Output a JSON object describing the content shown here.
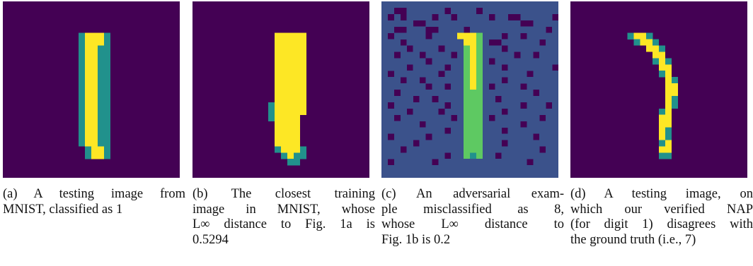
{
  "colors": {
    "background": "#440154",
    "mid": "#3b528b",
    "teal": "#21918c",
    "green": "#5ec962",
    "yellow": "#fde725"
  },
  "figures": [
    {
      "id": "a",
      "caption_lines": [
        "(a) A testing image from",
        "MNIST, classified as 1"
      ],
      "grid": [
        "0000000000000000000000000000",
        "0000000000000000000000000000",
        "0000000000000000000000000000",
        "0000000000000000000000000000",
        "0000000000000000000000000000",
        "0000000000002444200000000000",
        "0000000000002444200000000000",
        "0000000000002442200000000000",
        "0000000000002442200000000000",
        "0000000000002442200000000000",
        "0000000000002442200000000000",
        "0000000000002442200000000000",
        "0000000000002442200000000000",
        "0000000000002442200000000000",
        "0000000000002442200000000000",
        "0000000000002442200000000000",
        "0000000000002442200000000000",
        "0000000000002442200000000000",
        "0000000000002442200000000000",
        "0000000000002442200000000000",
        "0000000000002442200000000000",
        "0000000000002442200000000000",
        "0000000000002442200000000000",
        "0000000000000244200000000000",
        "0000000000000244200000000000",
        "0000000000000000000000000000",
        "0000000000000000000000000000",
        "0000000000000000000000000000"
      ]
    },
    {
      "id": "b",
      "caption_lines": [
        "(b) The closest training",
        "image in MNIST, whose",
        "L∞ distance to Fig. 1a is",
        "0.5294"
      ],
      "grid": [
        "0000000000000000000000000000",
        "0000000000000000000000000000",
        "0000000000000000000000000000",
        "0000000000000000000000000000",
        "0000000000000000000000000000",
        "0000000000000444440000000000",
        "0000000000000444440000000000",
        "0000000000000444440000000000",
        "0000000000000444440000000000",
        "0000000000000444440000000000",
        "0000000000000444440000000000",
        "0000000000000444440000000000",
        "0000000000000444440000000000",
        "0000000000000444440000000000",
        "0000000000000444440000000000",
        "0000000000000444440000000000",
        "0000000000002444440000000000",
        "0000000000002444440000000000",
        "0000000000002444400000000000",
        "0000000000000444400000000000",
        "0000000000000444400000000000",
        "0000000000000444400000000000",
        "0000000000000444400000000000",
        "0000000000000244420000000000",
        "0000000000000024220000000000",
        "0000000000000002200000000000",
        "0000000000000000000000000000",
        "0000000000000000000000000000"
      ]
    },
    {
      "id": "c",
      "caption_lines": [
        "(c) An adversarial exam-",
        "ple misclassified as 8,",
        "whose L∞ distance to",
        "Fig. 1b is 0.2"
      ],
      "grid": [
        "1111111111111111111111111111",
        "1100111111011110111111111111",
        "1010111101101111101100111110",
        "1111100111111111111111001111",
        "1100111001111011111111111101",
        "1011111011114443111011011111",
        "1110111111111443100111111011",
        "1111011110111343111011111111",
        "1101110111101343111110110111",
        "1111111011111343101111111111",
        "1111011111011343111011111110",
        "1011111110111343111111101111",
        "1110110111111343111011111111",
        "1111111011011343101111011111",
        "1101111111111333111111110111",
        "1111101101111333110111111111",
        "1011111111011333111111011101",
        "1111011110111333111011111111",
        "1101111111101333101111111011",
        "1111110111111333111111011111",
        "1111111111011333111011111111",
        "1011111011111333111111110111",
        "1111101111111333111011111111",
        "1110111111111333111111111011",
        "1111111111011323110111111111",
        "1011111101111111111111101111",
        "1111111111111111111111111111",
        "1111111111111111111111111111"
      ]
    },
    {
      "id": "d",
      "caption_lines": [
        "(d) A testing image, on",
        "which our verified NAP",
        "(for digit 1) disagrees with",
        "the ground truth (i.e., 7)"
      ],
      "grid": [
        "0000000000000000000000000000",
        "0000000000000000000000000000",
        "0000000000000000000000000000",
        "0000000000000000000000000000",
        "0000000000000000000000000000",
        "0000000000000000000000000000",
        "0000000000000000000000000000",
        "0000000000000000000000000000",
        "0000000000000000000000000000",
        "0000000000000000000000000000",
        "0000000000000000000000000000",
        "0000000000000000000000000000",
        "0000000000000000000000000000",
        "0000000000000000000000000000",
        "0000000000000000000000000000",
        "0000000000000000000000000000",
        "0000000000000000000000000000",
        "0000000000000000000000000000",
        "0000000000000000000000000000",
        "0000000000000000000000000000",
        "0000000000000000000000000000",
        "0000000000000000000000000000",
        "0000000000000000000000000000",
        "0000000000000000000000000000",
        "0000000000000000000000000000",
        "0000000000000000000000000000",
        "0000000000000000000000000000",
        "0000000000000000000000000000"
      ],
      "stroke": [
        [
          10,
          5,
          4
        ],
        [
          11,
          5,
          4
        ],
        [
          12,
          5,
          2
        ],
        [
          11,
          6,
          4
        ],
        [
          12,
          6,
          4
        ],
        [
          13,
          6,
          2
        ],
        [
          12,
          7,
          4
        ],
        [
          13,
          7,
          4
        ],
        [
          14,
          7,
          2
        ],
        [
          13,
          8,
          4
        ],
        [
          14,
          8,
          4
        ],
        [
          13,
          9,
          2
        ],
        [
          14,
          9,
          4
        ],
        [
          15,
          9,
          2
        ],
        [
          14,
          10,
          4
        ],
        [
          15,
          10,
          4
        ],
        [
          14,
          11,
          2
        ],
        [
          15,
          11,
          4
        ],
        [
          15,
          12,
          4
        ],
        [
          16,
          12,
          2
        ],
        [
          15,
          13,
          4
        ],
        [
          16,
          13,
          4
        ],
        [
          15,
          14,
          4
        ],
        [
          16,
          14,
          4
        ],
        [
          15,
          15,
          4
        ],
        [
          16,
          15,
          2
        ],
        [
          15,
          16,
          4
        ],
        [
          16,
          16,
          2
        ],
        [
          14,
          17,
          2
        ],
        [
          15,
          17,
          4
        ],
        [
          14,
          18,
          4
        ],
        [
          15,
          18,
          4
        ],
        [
          14,
          19,
          4
        ],
        [
          15,
          19,
          4
        ],
        [
          14,
          20,
          4
        ],
        [
          15,
          20,
          2
        ],
        [
          14,
          21,
          4
        ],
        [
          15,
          21,
          2
        ],
        [
          14,
          22,
          2
        ],
        [
          15,
          22,
          4
        ],
        [
          14,
          23,
          4
        ],
        [
          15,
          23,
          4
        ],
        [
          14,
          24,
          2
        ],
        [
          15,
          24,
          2
        ],
        [
          9,
          5,
          2
        ],
        [
          10,
          6,
          2
        ]
      ]
    }
  ]
}
